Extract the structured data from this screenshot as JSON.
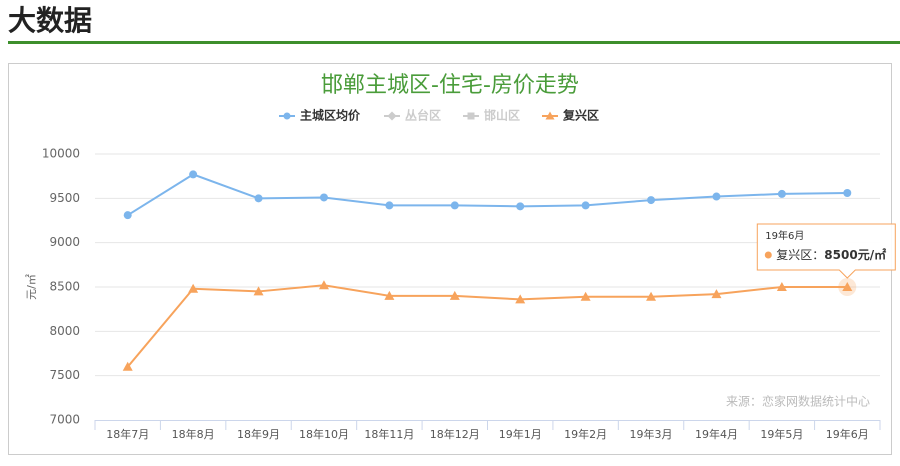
{
  "header": {
    "title": "大数据"
  },
  "chart_data": {
    "type": "line",
    "title": "邯郸主城区-住宅-房价走势",
    "categories": [
      "18年7月",
      "18年8月",
      "18年9月",
      "18年10月",
      "18年11月",
      "18年12月",
      "19年1月",
      "19年2月",
      "19年3月",
      "19年4月",
      "19年5月",
      "19年6月"
    ],
    "series": [
      {
        "name": "主城区均价",
        "color": "#7cb5ec",
        "marker": "circle",
        "values": [
          9310,
          9770,
          9500,
          9510,
          9420,
          9420,
          9410,
          9420,
          9480,
          9520,
          9550,
          9560
        ]
      },
      {
        "name": "丛台区",
        "color": "#cccccc",
        "marker": "diamond",
        "visible": false
      },
      {
        "name": "邯山区",
        "color": "#cccccc",
        "marker": "square",
        "visible": false
      },
      {
        "name": "复兴区",
        "color": "#f7a35c",
        "marker": "triangle",
        "values": [
          7600,
          8480,
          8450,
          8520,
          8400,
          8400,
          8360,
          8390,
          8390,
          8420,
          8500,
          8500
        ]
      }
    ],
    "ylabel": "元/㎡",
    "ylim": [
      7000,
      10000
    ],
    "yticks": [
      7000,
      7500,
      8000,
      8500,
      9000,
      9500,
      10000
    ],
    "grid": true,
    "source": "来源：恋家网数据统计中心",
    "tooltip": {
      "title": "19年6月",
      "series": "复兴区：",
      "value": 8500,
      "label": "8500元/㎡"
    }
  }
}
